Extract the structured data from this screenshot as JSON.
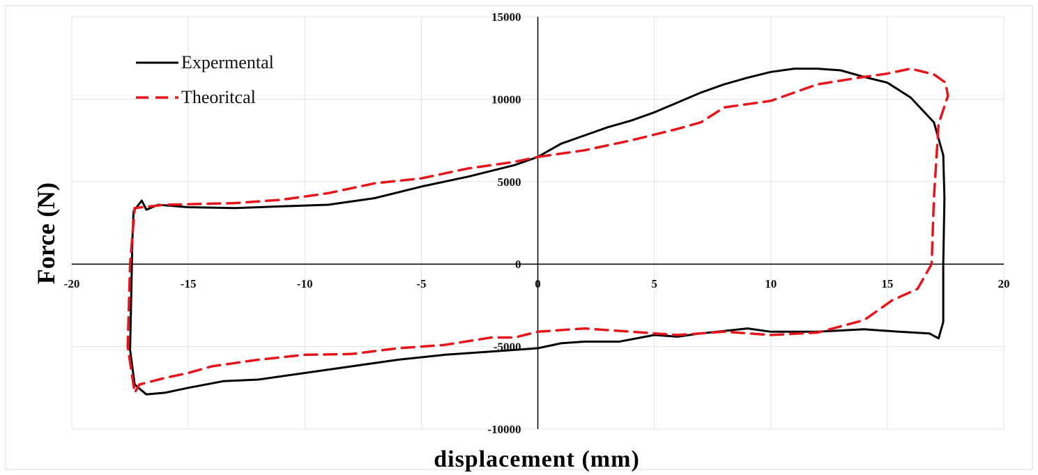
{
  "chart_data": {
    "type": "line",
    "title": "",
    "xlabel": "displacement (mm)",
    "ylabel": "Force (N)",
    "xlim": [
      -20,
      20
    ],
    "ylim": [
      -10000,
      15000
    ],
    "x_ticks": [
      -20,
      -15,
      -10,
      -5,
      0,
      5,
      10,
      15,
      20
    ],
    "y_ticks": [
      -10000,
      -5000,
      0,
      5000,
      10000,
      15000
    ],
    "grid": true,
    "legend_position": "top-left",
    "series": [
      {
        "name": "Expermental",
        "color": "#000000",
        "style": "solid",
        "points": [
          [
            0,
            6500
          ],
          [
            1,
            7300
          ],
          [
            2,
            7800
          ],
          [
            3,
            8300
          ],
          [
            4,
            8700
          ],
          [
            5,
            9200
          ],
          [
            6,
            9800
          ],
          [
            7,
            10400
          ],
          [
            8,
            10900
          ],
          [
            9,
            11300
          ],
          [
            10,
            11650
          ],
          [
            11,
            11850
          ],
          [
            12,
            11850
          ],
          [
            13,
            11750
          ],
          [
            14,
            11350
          ],
          [
            15,
            11000
          ],
          [
            16,
            10100
          ],
          [
            17,
            8600
          ],
          [
            17.4,
            6600
          ],
          [
            17.45,
            4000
          ],
          [
            17.4,
            0
          ],
          [
            17.4,
            -3500
          ],
          [
            17.2,
            -4500
          ],
          [
            16.8,
            -4200
          ],
          [
            15.5,
            -4100
          ],
          [
            14,
            -3950
          ],
          [
            12,
            -4100
          ],
          [
            10,
            -4100
          ],
          [
            9,
            -3900
          ],
          [
            7,
            -4200
          ],
          [
            6,
            -4400
          ],
          [
            5,
            -4300
          ],
          [
            3.5,
            -4700
          ],
          [
            2,
            -4700
          ],
          [
            1,
            -4800
          ],
          [
            0,
            -5100
          ],
          [
            -2,
            -5300
          ],
          [
            -4,
            -5500
          ],
          [
            -6,
            -5800
          ],
          [
            -8,
            -6200
          ],
          [
            -10,
            -6600
          ],
          [
            -12,
            -7000
          ],
          [
            -13.5,
            -7100
          ],
          [
            -15,
            -7500
          ],
          [
            -16,
            -7800
          ],
          [
            -16.8,
            -7900
          ],
          [
            -17.3,
            -7300
          ],
          [
            -17.5,
            -5200
          ],
          [
            -17.45,
            -2000
          ],
          [
            -17.4,
            1500
          ],
          [
            -17.35,
            3200
          ],
          [
            -17.0,
            3850
          ],
          [
            -16.8,
            3300
          ],
          [
            -16.3,
            3600
          ],
          [
            -15,
            3450
          ],
          [
            -13,
            3400
          ],
          [
            -11,
            3500
          ],
          [
            -9,
            3600
          ],
          [
            -7,
            4000
          ],
          [
            -5,
            4700
          ],
          [
            -3,
            5300
          ],
          [
            -1,
            6000
          ],
          [
            0,
            6500
          ]
        ]
      },
      {
        "name": "Theoritcal",
        "color": "#e8141b",
        "style": "dashed",
        "points": [
          [
            0,
            6500
          ],
          [
            2,
            6900
          ],
          [
            4,
            7500
          ],
          [
            6,
            8200
          ],
          [
            7,
            8600
          ],
          [
            8,
            9500
          ],
          [
            10,
            9900
          ],
          [
            12,
            10900
          ],
          [
            14,
            11350
          ],
          [
            15,
            11550
          ],
          [
            16,
            11850
          ],
          [
            17,
            11500
          ],
          [
            17.5,
            11000
          ],
          [
            17.6,
            10200
          ],
          [
            17.2,
            8500
          ],
          [
            17.0,
            4000
          ],
          [
            16.9,
            0
          ],
          [
            16.3,
            -1500
          ],
          [
            15.2,
            -2200
          ],
          [
            14,
            -3400
          ],
          [
            12,
            -4150
          ],
          [
            10,
            -4300
          ],
          [
            8,
            -4100
          ],
          [
            6,
            -4300
          ],
          [
            4,
            -4100
          ],
          [
            2,
            -3900
          ],
          [
            1,
            -4000
          ],
          [
            0,
            -4100
          ],
          [
            -1,
            -4450
          ],
          [
            -2,
            -4450
          ],
          [
            -4,
            -4900
          ],
          [
            -6,
            -5100
          ],
          [
            -8,
            -5450
          ],
          [
            -10,
            -5500
          ],
          [
            -12,
            -5800
          ],
          [
            -14,
            -6200
          ],
          [
            -15,
            -6600
          ],
          [
            -16,
            -6900
          ],
          [
            -17.1,
            -7300
          ],
          [
            -17.3,
            -7800
          ],
          [
            -17.6,
            -5000
          ],
          [
            -17.5,
            0
          ],
          [
            -17.3,
            3400
          ],
          [
            -16,
            3600
          ],
          [
            -13,
            3700
          ],
          [
            -11,
            3900
          ],
          [
            -9,
            4300
          ],
          [
            -7,
            4900
          ],
          [
            -5,
            5200
          ],
          [
            -3,
            5800
          ],
          [
            -1,
            6200
          ],
          [
            0,
            6500
          ]
        ]
      }
    ]
  }
}
